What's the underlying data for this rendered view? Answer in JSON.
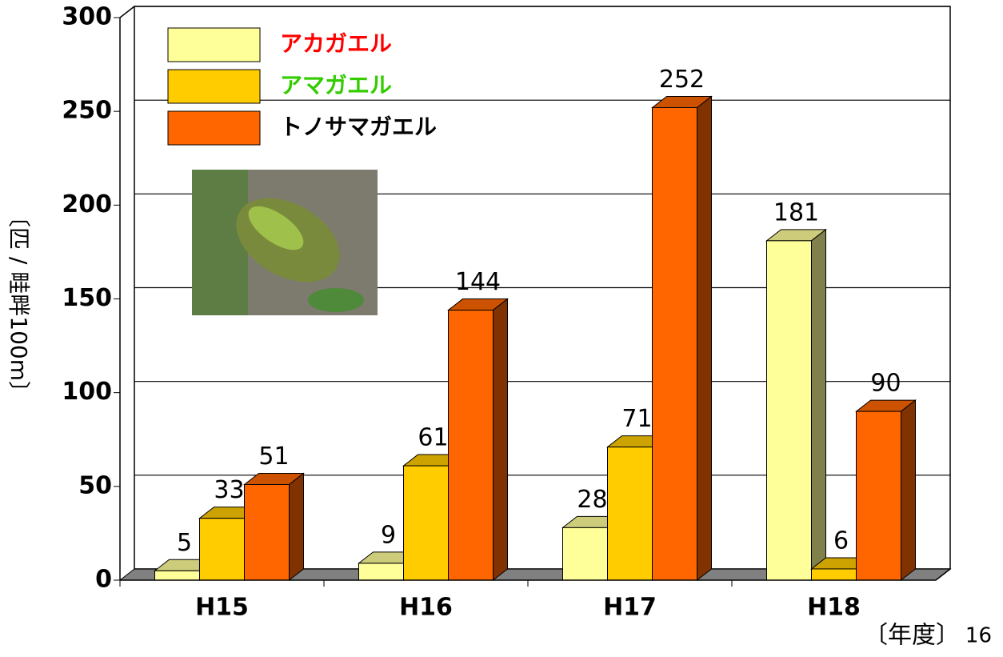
{
  "chart_data": {
    "type": "bar3d",
    "y_label": "〔匹 / 畦畔100m〕",
    "x_label": "〔年度〕",
    "page_number": "16",
    "categories": [
      "H15",
      "H16",
      "H17",
      "H18"
    ],
    "series": [
      {
        "name": "アカガエル",
        "color": "#ffff99",
        "legend_text_color": "#ff0000",
        "values": [
          5,
          9,
          28,
          181
        ]
      },
      {
        "name": "アマガエル",
        "color": "#ffcc00",
        "legend_text_color": "#33cc00",
        "values": [
          33,
          61,
          71,
          6
        ]
      },
      {
        "name": "トノサマガエル",
        "color": "#ff6600",
        "legend_text_color": "#000000",
        "values": [
          51,
          144,
          252,
          90
        ]
      }
    ],
    "ylim": [
      0,
      300
    ],
    "yticks": [
      0,
      50,
      100,
      150,
      200,
      250,
      300
    ],
    "grid": true
  }
}
